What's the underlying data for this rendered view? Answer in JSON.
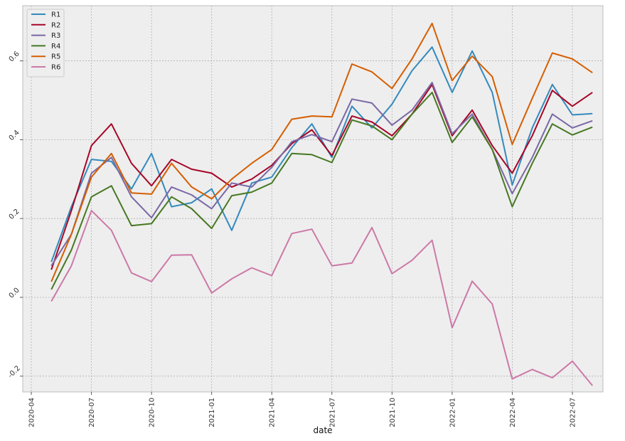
{
  "chart_data": {
    "type": "line",
    "xlabel": "date",
    "ylabel": "",
    "title": "",
    "grid": true,
    "legend_position": "top-left",
    "x_tick_labels": [
      "2020-04",
      "2020-07",
      "2020-10",
      "2021-01",
      "2021-04",
      "2021-07",
      "2021-10",
      "2022-01",
      "2022-04",
      "2022-07"
    ],
    "y_tick_labels": [
      "-0.2",
      "0.0",
      "0.2",
      "0.4",
      "0.6"
    ],
    "y_ticks": [
      -0.2,
      0.0,
      0.2,
      0.4,
      0.6
    ],
    "ylim": [
      -0.24,
      0.74
    ],
    "x": [
      "2020-05",
      "2020-06",
      "2020-07",
      "2020-08",
      "2020-09",
      "2020-10",
      "2020-11",
      "2020-12",
      "2021-01",
      "2021-02",
      "2021-03",
      "2021-04",
      "2021-05",
      "2021-06",
      "2021-07",
      "2021-08",
      "2021-09",
      "2021-10",
      "2021-11",
      "2021-12",
      "2022-01",
      "2022-02",
      "2022-03",
      "2022-04",
      "2022-05",
      "2022-06",
      "2022-07",
      "2022-08"
    ],
    "series": [
      {
        "name": "R1",
        "color": "#348ABD",
        "values": [
          0.09,
          0.23,
          0.35,
          0.345,
          0.275,
          0.365,
          0.23,
          0.24,
          0.275,
          0.17,
          0.29,
          0.305,
          0.38,
          0.44,
          0.355,
          0.485,
          0.43,
          0.49,
          0.575,
          0.635,
          0.52,
          0.625,
          0.52,
          0.285,
          0.43,
          0.54,
          0.463,
          0.466
        ]
      },
      {
        "name": "R2",
        "color": "#A60628",
        "values": [
          0.07,
          0.22,
          0.385,
          0.44,
          0.34,
          0.283,
          0.35,
          0.325,
          0.315,
          0.28,
          0.3,
          0.335,
          0.39,
          0.425,
          0.36,
          0.46,
          0.445,
          0.41,
          0.465,
          0.54,
          0.41,
          0.475,
          0.385,
          0.315,
          0.41,
          0.525,
          0.485,
          0.52
        ]
      },
      {
        "name": "R3",
        "color": "#7A68A6",
        "values": [
          0.08,
          0.16,
          0.315,
          0.355,
          0.255,
          0.202,
          0.28,
          0.26,
          0.225,
          0.29,
          0.28,
          0.33,
          0.395,
          0.413,
          0.395,
          0.503,
          0.493,
          0.437,
          0.475,
          0.545,
          0.415,
          0.465,
          0.375,
          0.263,
          0.355,
          0.465,
          0.43,
          0.448
        ]
      },
      {
        "name": "R4",
        "color": "#467821",
        "values": [
          0.02,
          0.12,
          0.255,
          0.283,
          0.182,
          0.187,
          0.255,
          0.225,
          0.175,
          0.258,
          0.267,
          0.29,
          0.365,
          0.362,
          0.342,
          0.45,
          0.435,
          0.4,
          0.465,
          0.52,
          0.393,
          0.458,
          0.375,
          0.23,
          0.34,
          0.44,
          0.412,
          0.432
        ]
      },
      {
        "name": "R5",
        "color": "#D55E00",
        "values": [
          0.04,
          0.16,
          0.305,
          0.365,
          0.265,
          0.262,
          0.34,
          0.28,
          0.25,
          0.3,
          0.34,
          0.375,
          0.452,
          0.46,
          0.458,
          0.592,
          0.572,
          0.53,
          0.605,
          0.695,
          0.55,
          0.612,
          0.56,
          0.388,
          0.505,
          0.62,
          0.605,
          0.57
        ]
      },
      {
        "name": "R6",
        "color": "#CC79A7",
        "values": [
          -0.01,
          0.08,
          0.22,
          0.17,
          0.062,
          0.04,
          0.107,
          0.108,
          0.011,
          0.047,
          0.075,
          0.055,
          0.162,
          0.173,
          0.08,
          0.087,
          0.177,
          0.06,
          0.094,
          0.145,
          -0.077,
          0.041,
          -0.017,
          -0.207,
          -0.183,
          -0.204,
          -0.162,
          -0.224
        ]
      }
    ]
  }
}
